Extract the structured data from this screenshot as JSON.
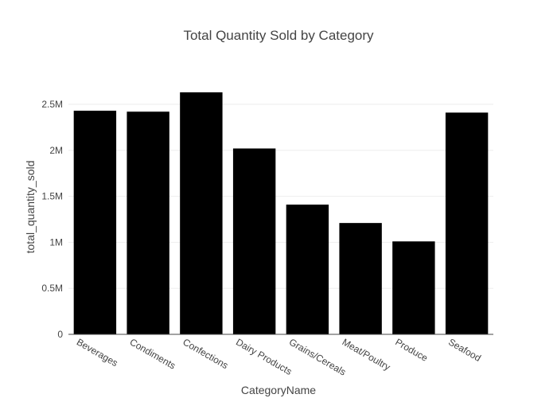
{
  "chart_data": {
    "type": "bar",
    "title": "Total Quantity Sold by Category",
    "xlabel": "CategoryName",
    "ylabel": "total_quantity_sold",
    "categories": [
      "Beverages",
      "Condiments",
      "Confections",
      "Dairy Products",
      "Grains/Cereals",
      "Meat/Poultry",
      "Produce",
      "Seafood"
    ],
    "values": [
      2430000,
      2420000,
      2630000,
      2020000,
      1410000,
      1210000,
      1010000,
      2410000
    ],
    "ylim": [
      0,
      2630000
    ],
    "yticks": [
      0,
      500000,
      1000000,
      1500000,
      2000000,
      2500000
    ],
    "ytick_labels": [
      "0",
      "0.5M",
      "1M",
      "1.5M",
      "2M",
      "2.5M"
    ],
    "grid": true,
    "bar_color": "#000000",
    "grid_color": "#eeeeee",
    "axis_color": "#444444"
  }
}
